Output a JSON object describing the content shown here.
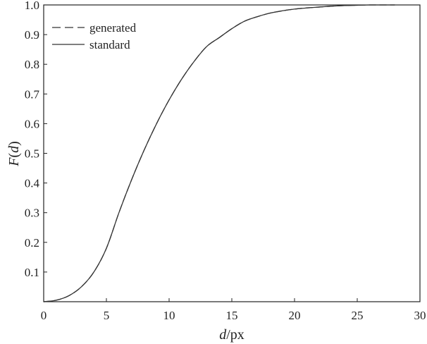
{
  "chart_data": {
    "type": "line",
    "xlabel": {
      "italic": "d",
      "rest": "/px"
    },
    "ylabel": {
      "pre": "F",
      "open": "(",
      "italic": "d",
      "close": ")"
    },
    "xlim": [
      0,
      30
    ],
    "ylim": [
      0,
      1.0
    ],
    "xticks": [
      0,
      5,
      10,
      15,
      20,
      25,
      30
    ],
    "xtick_labels": [
      "0",
      "5",
      "10",
      "15",
      "20",
      "25",
      "30"
    ],
    "yticks": [
      0.1,
      0.2,
      0.3,
      0.4,
      0.5,
      0.6,
      0.7,
      0.8,
      0.9,
      1.0
    ],
    "ytick_labels": [
      "0.1",
      "0.2",
      "0.3",
      "0.4",
      "0.5",
      "0.6",
      "0.7",
      "0.8",
      "0.9",
      "1.0"
    ],
    "grid": false,
    "legend_position": "top-left",
    "series": [
      {
        "name": "generated",
        "style": "dashed",
        "color": "#333333",
        "x": [
          0,
          1,
          2,
          3,
          4,
          5,
          6,
          7,
          8,
          9,
          10,
          11,
          12,
          13,
          14,
          15,
          16,
          17,
          18,
          19,
          20,
          21,
          22,
          23,
          24,
          25,
          26,
          27,
          28
        ],
        "y": [
          0,
          0.005,
          0.02,
          0.05,
          0.1,
          0.18,
          0.3,
          0.41,
          0.51,
          0.6,
          0.68,
          0.75,
          0.81,
          0.86,
          0.89,
          0.92,
          0.945,
          0.96,
          0.972,
          0.98,
          0.986,
          0.99,
          0.993,
          0.996,
          0.998,
          0.999,
          1.0,
          1.0,
          1.0
        ]
      },
      {
        "name": "standard",
        "style": "solid",
        "color": "#333333",
        "x": [
          0,
          1,
          2,
          3,
          4,
          5,
          6,
          7,
          8,
          9,
          10,
          11,
          12,
          13,
          14,
          15,
          16,
          17,
          18,
          19,
          20,
          21,
          22,
          23,
          24,
          25,
          26,
          27,
          28
        ],
        "y": [
          0,
          0.005,
          0.02,
          0.05,
          0.1,
          0.18,
          0.3,
          0.41,
          0.51,
          0.6,
          0.68,
          0.75,
          0.81,
          0.86,
          0.89,
          0.92,
          0.945,
          0.96,
          0.972,
          0.98,
          0.986,
          0.99,
          0.993,
          0.996,
          0.998,
          0.999,
          1.0,
          1.0,
          1.0
        ]
      }
    ]
  }
}
